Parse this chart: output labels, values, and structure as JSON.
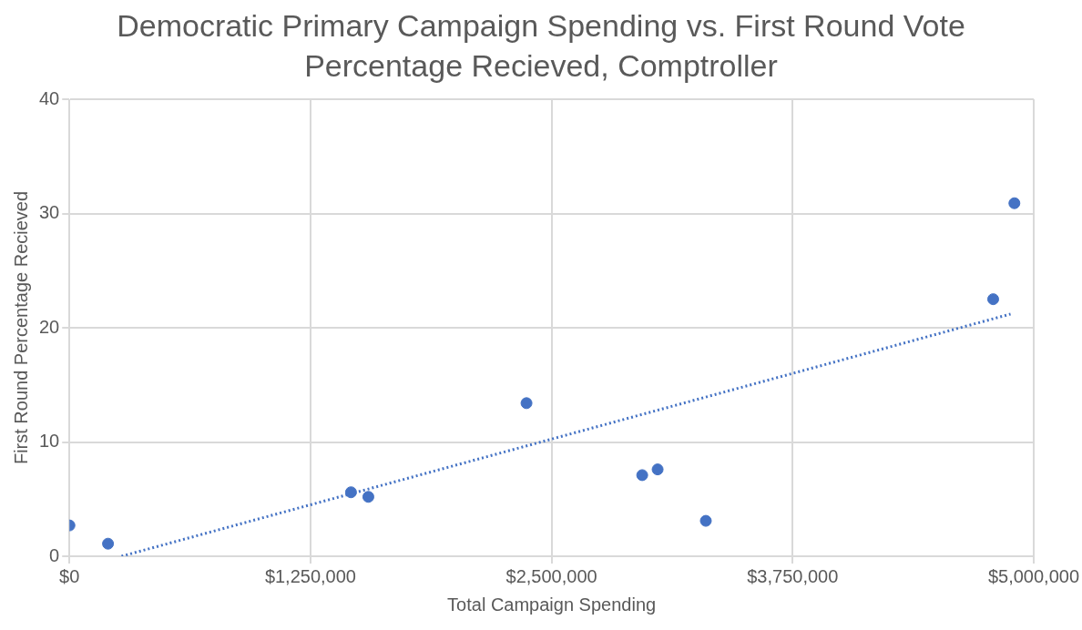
{
  "chart_data": {
    "type": "scatter",
    "title": "Democratic Primary Campaign Spending vs. First Round Vote Percentage Recieved, Comptroller",
    "xlabel": "Total Campaign Spending",
    "ylabel": "First Round Percentage Recieved",
    "xlim": [
      0,
      5000000
    ],
    "ylim": [
      0,
      40
    ],
    "xticks": [
      {
        "value": 0,
        "label": "$0"
      },
      {
        "value": 1250000,
        "label": "$1,250,000"
      },
      {
        "value": 2500000,
        "label": "$2,500,000"
      },
      {
        "value": 3750000,
        "label": "$3,750,000"
      },
      {
        "value": 5000000,
        "label": "$5,000,000"
      }
    ],
    "yticks": [
      0,
      10,
      20,
      30,
      40
    ],
    "grid": true,
    "marker": "circle",
    "series": [
      {
        "color": "#4472c4",
        "x": [
          0,
          200000,
          1460000,
          1550000,
          2370000,
          2970000,
          3050000,
          3300000,
          4790000,
          4900000
        ],
        "values": [
          2.7,
          1.1,
          5.6,
          5.2,
          13.4,
          7.1,
          7.6,
          3.1,
          22.5,
          30.9
        ]
      },
      {
        "type": "line",
        "color": "#4472c4",
        "line_style": "dotted",
        "marker": "none",
        "x": [
          270000,
          4880000
        ],
        "values": [
          0,
          21.2
        ]
      }
    ]
  }
}
